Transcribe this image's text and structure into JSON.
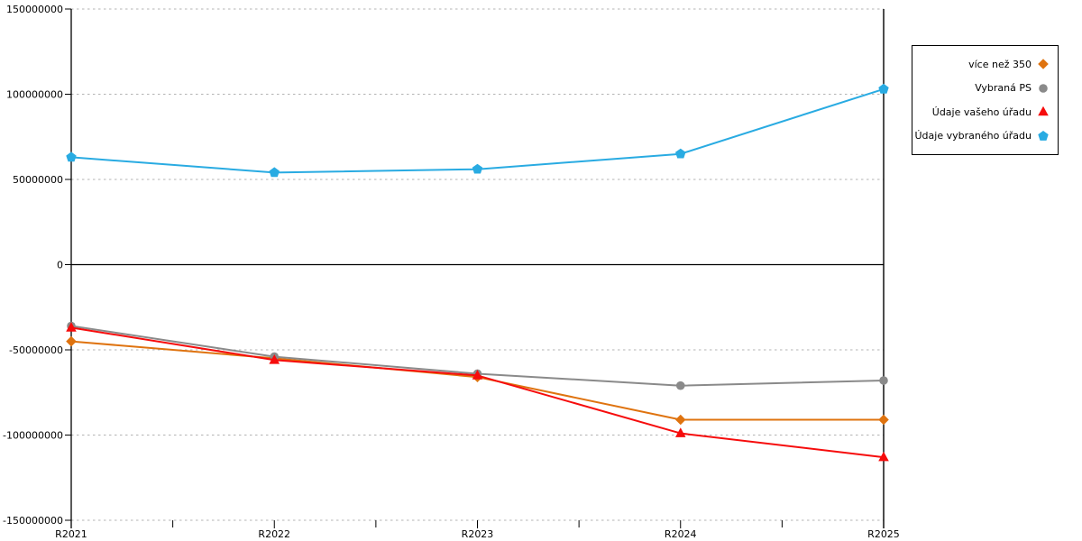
{
  "chart_data": {
    "type": "line",
    "title": "",
    "xlabel": "",
    "ylabel": "",
    "categories": [
      "R2021",
      "R2022",
      "R2023",
      "R2024",
      "R2025"
    ],
    "series": [
      {
        "name": "více než 350",
        "color": "#DF730F",
        "marker": "diamond",
        "values": [
          -45000000,
          -55000000,
          -66000000,
          -91000000,
          -91000000
        ]
      },
      {
        "name": "Vybraná PS",
        "color": "#8A8A8A",
        "marker": "circle",
        "values": [
          -36000000,
          -54000000,
          -64000000,
          -71000000,
          -68000000
        ]
      },
      {
        "name": "Údaje vašeho úřadu",
        "color": "#F60C0C",
        "marker": "triangle-up",
        "values": [
          -37000000,
          -56000000,
          -65000000,
          -99000000,
          -113000000
        ]
      },
      {
        "name": "Údaje vybraného úřadu",
        "color": "#29ABE2",
        "marker": "pentagon-up",
        "values": [
          63000000,
          54000000,
          56000000,
          65000000,
          103000000
        ]
      }
    ],
    "ylim": [
      -150000000,
      150000000
    ],
    "y_ticks": [
      {
        "value": 150000000,
        "label": "150000000"
      },
      {
        "value": 100000000,
        "label": "100000000"
      },
      {
        "value": 50000000,
        "label": "50000000"
      },
      {
        "value": 0,
        "label": "0"
      },
      {
        "value": -50000000,
        "label": "-50000000"
      },
      {
        "value": -100000000,
        "label": "-100000000"
      },
      {
        "value": -150000000,
        "label": "-150000000"
      }
    ],
    "grid": "horizontal-dashed",
    "legend_position": "right",
    "colors": {
      "grid_line": "#B3B3B3",
      "axis_line": "#000000",
      "tick_label": "#000000"
    }
  }
}
